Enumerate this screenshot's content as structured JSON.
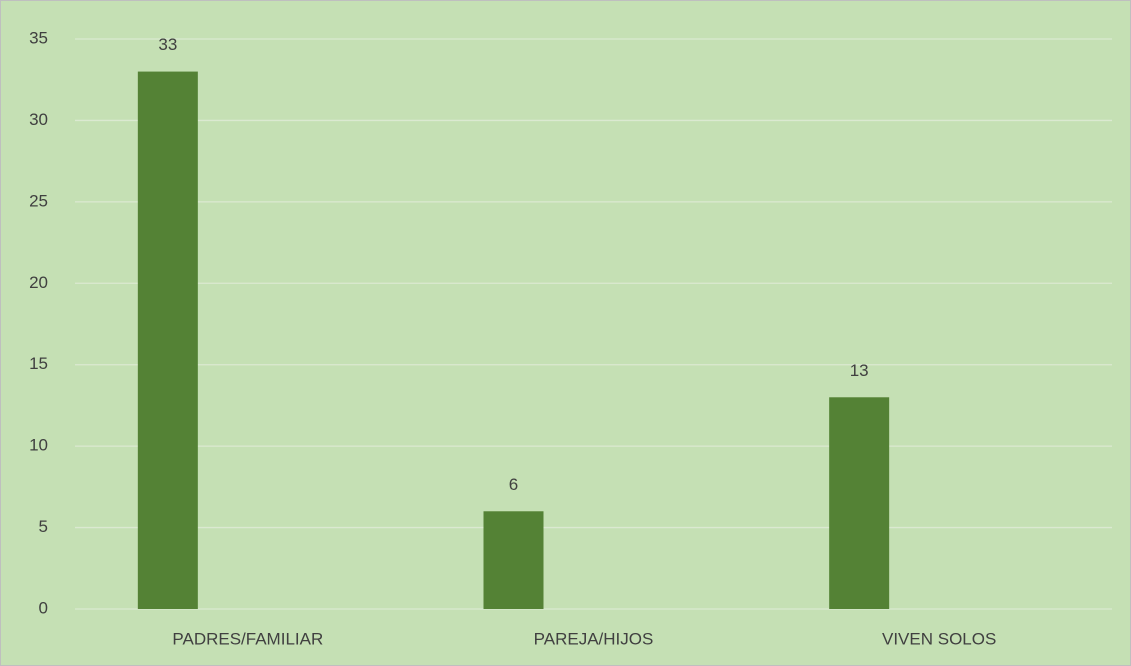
{
  "chart_data": {
    "type": "bar",
    "categories": [
      "PADRES/FAMILIAR",
      "PAREJA/HIJOS",
      "VIVEN SOLOS"
    ],
    "values": [
      33,
      6,
      13
    ],
    "color": "#548235",
    "ylim": [
      0,
      35
    ],
    "yticks": [
      0,
      5,
      10,
      15,
      20,
      25,
      30,
      35
    ],
    "grid": true,
    "data_labels": true
  }
}
